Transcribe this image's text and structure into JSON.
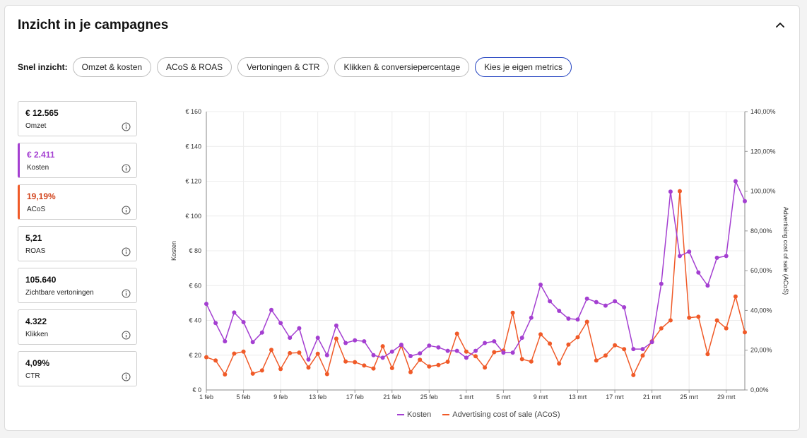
{
  "header": {
    "title": "Inzicht in je campagnes"
  },
  "quick": {
    "label": "Snel inzicht:",
    "buttons": [
      "Omzet & kosten",
      "ACoS & ROAS",
      "Vertoningen & CTR",
      "Klikken & conversiepercentage",
      "Kies je eigen metrics"
    ],
    "active_index": 4
  },
  "metrics": [
    {
      "value": "€ 12.565",
      "label": "Omzet",
      "accent": ""
    },
    {
      "value": "€ 2.411",
      "label": "Kosten",
      "accent": "#a43fd1"
    },
    {
      "value": "19,19%",
      "label": "ACoS",
      "accent": "#f05a28"
    },
    {
      "value": "5,21",
      "label": "ROAS",
      "accent": ""
    },
    {
      "value": "105.640",
      "label": "Zichtbare vertoningen",
      "accent": ""
    },
    {
      "value": "4.322",
      "label": "Klikken",
      "accent": ""
    },
    {
      "value": "4,09%",
      "label": "CTR",
      "accent": ""
    }
  ],
  "chart_data": {
    "type": "line",
    "xlabels": [
      "1 feb",
      "5 feb",
      "9 feb",
      "13 feb",
      "17 feb",
      "21 feb",
      "25 feb",
      "1 mrt",
      "5 mrt",
      "9 mrt",
      "13 mrt",
      "17 mrt",
      "21 mrt",
      "25 mrt",
      "29 mrt"
    ],
    "ylabel_left": "Kosten",
    "ylabel_right": "Advertising cost of sale (ACoS)",
    "yticks_left": [
      "€ 0",
      "€ 20",
      "€ 40",
      "€ 60",
      "€ 80",
      "€ 100",
      "€ 120",
      "€ 140",
      "€ 160"
    ],
    "yticks_right": [
      "0,00%",
      "20,00%",
      "40,00%",
      "60,00%",
      "80,00%",
      "100,00%",
      "120,00%",
      "140,00%"
    ],
    "ylim_left": [
      0,
      160
    ],
    "ylim_right": [
      0,
      140
    ],
    "grid": true,
    "legend": "bottom",
    "series": [
      {
        "name": "Kosten",
        "axis": "left",
        "color": "#a43fd1",
        "values": [
          49.5,
          38.5,
          28,
          44.5,
          39,
          27.5,
          33,
          46,
          38.5,
          30,
          35.5,
          17.5,
          30,
          20,
          37,
          27,
          28.5,
          28,
          20,
          18.5,
          22,
          26,
          19.5,
          21,
          25.5,
          24.5,
          22.5,
          22.5,
          18.5,
          22.5,
          27,
          28,
          21.5,
          21.5,
          30,
          41.5,
          60.5,
          51,
          45.5,
          41,
          40.5,
          52.5,
          50.5,
          48.5,
          51,
          47.5,
          23.5,
          23.5,
          27.5,
          61,
          114,
          77,
          79.5,
          67.5,
          60,
          76,
          77,
          120,
          108.5
        ]
      },
      {
        "name": "Advertising cost of sale (ACoS)",
        "axis": "right",
        "color": "#f05a28",
        "values": [
          16.5,
          14.8,
          7.8,
          18.3,
          19.3,
          8.2,
          9.8,
          20.2,
          10.5,
          18.5,
          18.8,
          11.3,
          18.2,
          8,
          25.8,
          14.3,
          14,
          12.3,
          10.8,
          22,
          11,
          22.3,
          9,
          15.2,
          11.8,
          12.5,
          14.2,
          28.3,
          19.3,
          17,
          11.3,
          19,
          19.8,
          38.8,
          15.5,
          14.3,
          28,
          23.3,
          13.3,
          22.8,
          26.5,
          34.3,
          14.8,
          17.3,
          22.5,
          20.5,
          7.5,
          17.3,
          24.5,
          31,
          35,
          100,
          36.3,
          36.8,
          18,
          35,
          31,
          47,
          29
        ]
      }
    ]
  }
}
